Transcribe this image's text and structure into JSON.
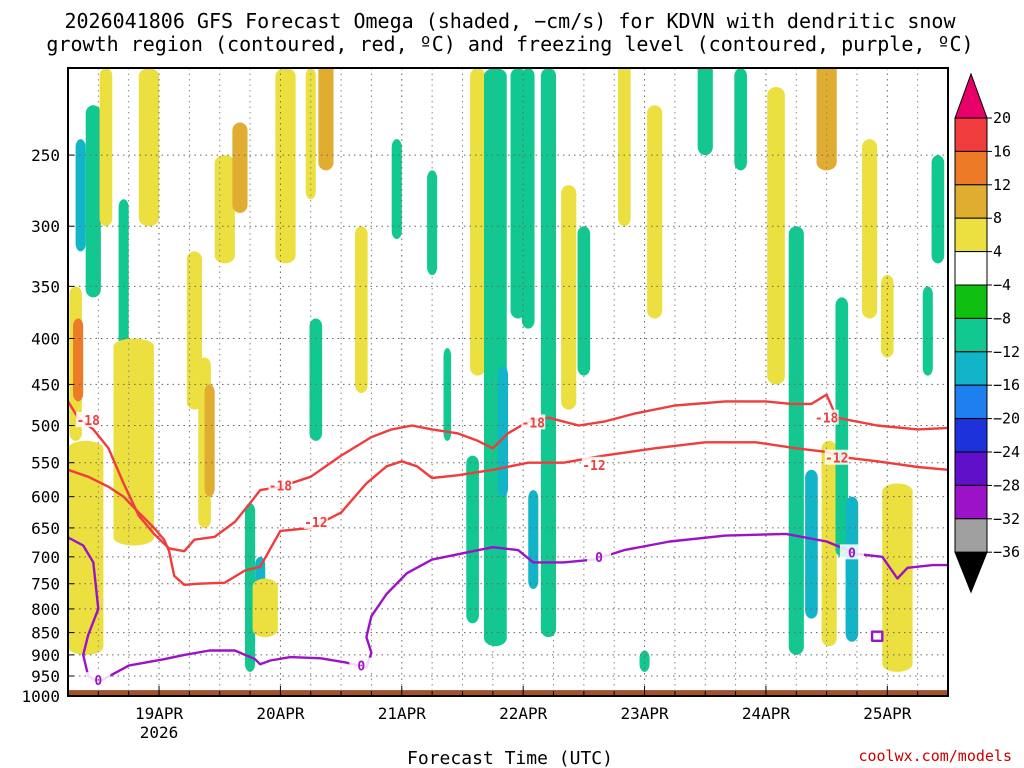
{
  "chart_data": {
    "type": "heatmap",
    "title_line1": "2026041806 GFS Forecast Omega (shaded, −cm/s) for KDVN with dendritic snow",
    "title_line2": "growth region (contoured, red, ºC) and freezing level (contoured, purple, ºC)",
    "xlabel": "Forecast Time (UTC)",
    "ylabel": "",
    "credit": "coolwx.com/models",
    "x_ticks": [
      "19APR",
      "20APR",
      "21APR",
      "22APR",
      "23APR",
      "24APR",
      "25APR"
    ],
    "x_tick_hours": [
      18,
      42,
      66,
      90,
      114,
      138,
      162
    ],
    "year_label": "2026",
    "xlim_hours": [
      0,
      174
    ],
    "y_ticks": [
      250,
      300,
      350,
      400,
      450,
      500,
      550,
      600,
      650,
      700,
      750,
      800,
      850,
      900,
      950,
      1000
    ],
    "ylim_hPa": [
      200,
      1000
    ],
    "colorbar": {
      "labels": [
        "20",
        "16",
        "12",
        "8",
        "4",
        "−4",
        "−8",
        "−12",
        "−16",
        "−20",
        "−24",
        "−28",
        "−32",
        "−36"
      ],
      "colors": [
        "#e8006a",
        "#f03c3c",
        "#ec7a26",
        "#e0ad30",
        "#ece040",
        "#ffffff",
        "#10c010",
        "#10c890",
        "#12b4c8",
        "#1e80f0",
        "#1e32dc",
        "#6010c8",
        "#9c12c8",
        "#a0a0a0",
        "#000000"
      ]
    },
    "omega_cells": [
      {
        "t": 1.5,
        "w": 2.5,
        "p_top": 350,
        "p_bot": 520,
        "v": 4
      },
      {
        "t": 2.5,
        "w": 2.0,
        "p_top": 240,
        "p_bot": 320,
        "v": -12
      },
      {
        "t": 2.0,
        "w": 2.0,
        "p_top": 380,
        "p_bot": 470,
        "v": 12
      },
      {
        "t": 3.5,
        "w": 7.0,
        "p_top": 520,
        "p_bot": 900,
        "v": 4
      },
      {
        "t": 5.0,
        "w": 3.0,
        "p_top": 220,
        "p_bot": 360,
        "v": -8
      },
      {
        "t": 7.5,
        "w": 2.5,
        "p_top": 200,
        "p_bot": 300,
        "v": 4
      },
      {
        "t": 11.0,
        "w": 2.0,
        "p_top": 280,
        "p_bot": 450,
        "v": -8
      },
      {
        "t": 13.0,
        "w": 8.0,
        "p_top": 400,
        "p_bot": 680,
        "v": 4
      },
      {
        "t": 16.0,
        "w": 4.0,
        "p_top": 200,
        "p_bot": 300,
        "v": 4
      },
      {
        "t": 25.0,
        "w": 3.0,
        "p_top": 320,
        "p_bot": 480,
        "v": 4
      },
      {
        "t": 27.0,
        "w": 2.5,
        "p_top": 420,
        "p_bot": 650,
        "v": 4
      },
      {
        "t": 28.0,
        "w": 2.0,
        "p_top": 450,
        "p_bot": 600,
        "v": 8
      },
      {
        "t": 31.0,
        "w": 4.0,
        "p_top": 250,
        "p_bot": 330,
        "v": 4
      },
      {
        "t": 34.0,
        "w": 3.0,
        "p_top": 230,
        "p_bot": 290,
        "v": 8
      },
      {
        "t": 36.0,
        "w": 2.0,
        "p_top": 610,
        "p_bot": 940,
        "v": -8
      },
      {
        "t": 38.0,
        "w": 2.0,
        "p_top": 700,
        "p_bot": 800,
        "v": -12
      },
      {
        "t": 39.0,
        "w": 5.0,
        "p_top": 740,
        "p_bot": 860,
        "v": 4
      },
      {
        "t": 43.0,
        "w": 4.0,
        "p_top": 200,
        "p_bot": 330,
        "v": 4
      },
      {
        "t": 48.0,
        "w": 2.0,
        "p_top": 200,
        "p_bot": 280,
        "v": 4
      },
      {
        "t": 49.0,
        "w": 2.5,
        "p_top": 380,
        "p_bot": 520,
        "v": -8
      },
      {
        "t": 51.0,
        "w": 3.0,
        "p_top": 190,
        "p_bot": 260,
        "v": 8
      },
      {
        "t": 58.0,
        "w": 2.5,
        "p_top": 300,
        "p_bot": 460,
        "v": 4
      },
      {
        "t": 65.0,
        "w": 2.0,
        "p_top": 240,
        "p_bot": 310,
        "v": -8
      },
      {
        "t": 72.0,
        "w": 2.0,
        "p_top": 260,
        "p_bot": 340,
        "v": -8
      },
      {
        "t": 75.0,
        "w": 1.5,
        "p_top": 410,
        "p_bot": 520,
        "v": -8
      },
      {
        "t": 80.0,
        "w": 2.5,
        "p_top": 540,
        "p_bot": 830,
        "v": -8
      },
      {
        "t": 81.0,
        "w": 3.0,
        "p_top": 200,
        "p_bot": 440,
        "v": 4
      },
      {
        "t": 84.5,
        "w": 4.5,
        "p_top": 200,
        "p_bot": 880,
        "v": -8
      },
      {
        "t": 86.0,
        "w": 2.0,
        "p_top": 430,
        "p_bot": 600,
        "v": -12
      },
      {
        "t": 89.0,
        "w": 3.0,
        "p_top": 200,
        "p_bot": 380,
        "v": -8
      },
      {
        "t": 91.0,
        "w": 2.5,
        "p_top": 200,
        "p_bot": 390,
        "v": -8
      },
      {
        "t": 92.0,
        "w": 2.0,
        "p_top": 590,
        "p_bot": 760,
        "v": -12
      },
      {
        "t": 95.0,
        "w": 3.0,
        "p_top": 200,
        "p_bot": 860,
        "v": -8
      },
      {
        "t": 99.0,
        "w": 3.0,
        "p_top": 270,
        "p_bot": 480,
        "v": 4
      },
      {
        "t": 102.0,
        "w": 2.5,
        "p_top": 300,
        "p_bot": 440,
        "v": -8
      },
      {
        "t": 110.0,
        "w": 2.5,
        "p_top": 180,
        "p_bot": 300,
        "v": 4
      },
      {
        "t": 116.0,
        "w": 3.0,
        "p_top": 220,
        "p_bot": 380,
        "v": 4
      },
      {
        "t": 114.0,
        "w": 2.0,
        "p_top": 890,
        "p_bot": 940,
        "v": -8
      },
      {
        "t": 126.0,
        "w": 3.0,
        "p_top": 170,
        "p_bot": 250,
        "v": -8
      },
      {
        "t": 133.0,
        "w": 2.5,
        "p_top": 200,
        "p_bot": 260,
        "v": -8
      },
      {
        "t": 140.0,
        "w": 3.5,
        "p_top": 210,
        "p_bot": 450,
        "v": 4
      },
      {
        "t": 144.0,
        "w": 3.0,
        "p_top": 300,
        "p_bot": 900,
        "v": -8
      },
      {
        "t": 147.0,
        "w": 2.5,
        "p_top": 560,
        "p_bot": 820,
        "v": -12
      },
      {
        "t": 150.0,
        "w": 4.0,
        "p_top": 180,
        "p_bot": 260,
        "v": 8
      },
      {
        "t": 150.5,
        "w": 3.0,
        "p_top": 520,
        "p_bot": 880,
        "v": 4
      },
      {
        "t": 153.0,
        "w": 2.5,
        "p_top": 360,
        "p_bot": 700,
        "v": -8
      },
      {
        "t": 155.0,
        "w": 2.5,
        "p_top": 600,
        "p_bot": 870,
        "v": -12
      },
      {
        "t": 158.5,
        "w": 3.0,
        "p_top": 240,
        "p_bot": 380,
        "v": 4
      },
      {
        "t": 162.0,
        "w": 2.5,
        "p_top": 340,
        "p_bot": 420,
        "v": 4
      },
      {
        "t": 164.0,
        "w": 6.0,
        "p_top": 580,
        "p_bot": 940,
        "v": 4
      },
      {
        "t": 170.0,
        "w": 2.0,
        "p_top": 350,
        "p_bot": 440,
        "v": -8
      },
      {
        "t": 172.0,
        "w": 2.5,
        "p_top": 250,
        "p_bot": 330,
        "v": -8
      }
    ],
    "contours": [
      {
        "label": "-18",
        "color": "#f03c3c",
        "series": [
          [
            0,
            470
          ],
          [
            2,
            490
          ],
          [
            5,
            505
          ],
          [
            8,
            530
          ],
          [
            11,
            580
          ],
          [
            14,
            630
          ],
          [
            17,
            660
          ],
          [
            20,
            685
          ],
          [
            23,
            690
          ],
          [
            25,
            670
          ],
          [
            29,
            665
          ],
          [
            33,
            640
          ],
          [
            36,
            610
          ],
          [
            38,
            590
          ],
          [
            42,
            585
          ],
          [
            48,
            570
          ],
          [
            54,
            540
          ],
          [
            60,
            515
          ],
          [
            64,
            505
          ],
          [
            68,
            500
          ],
          [
            72,
            505
          ],
          [
            77,
            510
          ],
          [
            81,
            520
          ],
          [
            84,
            530
          ],
          [
            87,
            510
          ],
          [
            91,
            495
          ],
          [
            95,
            490
          ],
          [
            101,
            500
          ],
          [
            106,
            495
          ],
          [
            112,
            485
          ],
          [
            120,
            475
          ],
          [
            130,
            470
          ],
          [
            138,
            470
          ],
          [
            143,
            473
          ],
          [
            147,
            473
          ],
          [
            150,
            462
          ],
          [
            152,
            490
          ],
          [
            160,
            500
          ],
          [
            168,
            505
          ],
          [
            174,
            503
          ]
        ],
        "label_pos": [
          [
            4,
            493
          ],
          [
            42,
            583
          ],
          [
            92,
            496
          ],
          [
            150,
            490
          ]
        ]
      },
      {
        "label": "-12",
        "color": "#f03c3c",
        "series": [
          [
            0,
            560
          ],
          [
            4,
            570
          ],
          [
            8,
            585
          ],
          [
            11,
            600
          ],
          [
            14,
            625
          ],
          [
            17,
            650
          ],
          [
            19,
            670
          ],
          [
            20,
            690
          ],
          [
            21,
            735
          ],
          [
            23,
            752
          ],
          [
            26,
            750
          ],
          [
            31,
            748
          ],
          [
            35,
            725
          ],
          [
            38,
            718
          ],
          [
            42,
            655
          ],
          [
            48,
            650
          ],
          [
            54,
            625
          ],
          [
            59,
            580
          ],
          [
            63,
            555
          ],
          [
            66,
            548
          ],
          [
            69,
            555
          ],
          [
            72,
            572
          ],
          [
            77,
            568
          ],
          [
            84,
            560
          ],
          [
            91,
            550
          ],
          [
            98,
            550
          ],
          [
            106,
            540
          ],
          [
            116,
            530
          ],
          [
            126,
            522
          ],
          [
            136,
            522
          ],
          [
            144,
            530
          ],
          [
            150,
            535
          ],
          [
            154,
            543
          ],
          [
            160,
            548
          ],
          [
            168,
            556
          ],
          [
            174,
            560
          ]
        ],
        "label_pos": [
          [
            49,
            640
          ],
          [
            104,
            553
          ],
          [
            152,
            543
          ]
        ]
      },
      {
        "label": "0",
        "color": "#9c12c8",
        "series": [
          [
            0,
            666
          ],
          [
            3,
            680
          ],
          [
            5,
            710
          ],
          [
            6,
            800
          ],
          [
            4,
            855
          ],
          [
            3,
            900
          ],
          [
            4,
            950
          ],
          [
            6,
            965
          ],
          [
            12,
            925
          ],
          [
            19,
            910
          ],
          [
            23,
            900
          ],
          [
            28,
            890
          ],
          [
            33,
            890
          ],
          [
            37,
            910
          ],
          [
            38,
            922
          ],
          [
            40,
            913
          ],
          [
            44,
            905
          ],
          [
            50,
            908
          ],
          [
            55,
            918
          ],
          [
            59,
            930
          ],
          [
            60,
            895
          ],
          [
            59,
            860
          ],
          [
            60,
            815
          ],
          [
            63,
            770
          ],
          [
            67,
            730
          ],
          [
            72,
            705
          ],
          [
            79,
            692
          ],
          [
            84,
            683
          ],
          [
            89,
            688
          ],
          [
            92,
            710
          ],
          [
            98,
            710
          ],
          [
            104,
            705
          ],
          [
            110,
            688
          ],
          [
            119,
            673
          ],
          [
            130,
            663
          ],
          [
            142,
            660
          ],
          [
            150,
            673
          ],
          [
            156,
            695
          ],
          [
            161,
            700
          ],
          [
            164,
            740
          ],
          [
            166,
            720
          ],
          [
            171,
            715
          ],
          [
            174,
            715
          ]
        ],
        "label_pos": [
          [
            6,
            960
          ],
          [
            58,
            925
          ],
          [
            105,
            700
          ],
          [
            155,
            692
          ]
        ]
      },
      {
        "label": "0",
        "color": "#9c12c8",
        "closed": true,
        "series": [
          [
            159,
            848
          ],
          [
            161,
            848
          ],
          [
            161,
            868
          ],
          [
            159,
            868
          ]
        ],
        "label_pos": []
      }
    ]
  }
}
